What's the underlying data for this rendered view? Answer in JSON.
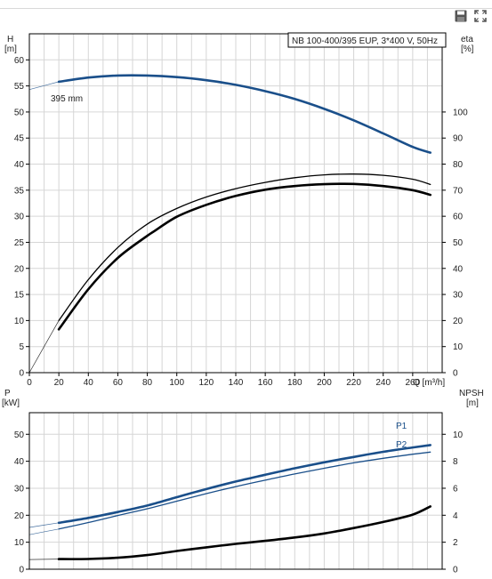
{
  "toolbar": {
    "save_icon": "floppy-disk-icon",
    "fullscreen_icon": "expand-arrows-icon"
  },
  "chart_data": [
    {
      "type": "line",
      "title": "NB 100-400/395 EUP, 3*400 V, 50Hz",
      "xlabel": "Q [m³/h]",
      "xlim": [
        0,
        280
      ],
      "x_ticks": [
        0,
        20,
        40,
        60,
        80,
        100,
        120,
        140,
        160,
        180,
        200,
        220,
        240,
        260
      ],
      "left_axis": {
        "label": "H",
        "unit": "[m]",
        "ylim": [
          0,
          65
        ],
        "ticks": [
          0,
          5,
          10,
          15,
          20,
          25,
          30,
          35,
          40,
          45,
          50,
          55,
          60
        ]
      },
      "right_axis": {
        "label": "eta",
        "unit": "[%]",
        "ylim": [
          0,
          130
        ],
        "ticks": [
          0,
          10,
          20,
          30,
          40,
          50,
          60,
          70,
          80,
          90,
          100
        ]
      },
      "grid": true,
      "series": [
        {
          "name": "395 mm",
          "axis": "left",
          "color": "#1a4f8a",
          "x": [
            0,
            20,
            40,
            60,
            80,
            100,
            120,
            140,
            160,
            180,
            200,
            220,
            240,
            260,
            272
          ],
          "y": [
            54.3,
            55.8,
            56.6,
            57.0,
            57.0,
            56.7,
            56.1,
            55.2,
            54.0,
            52.5,
            50.6,
            48.4,
            45.9,
            43.3,
            42.2
          ]
        },
        {
          "axis": "right",
          "color": "#000000",
          "style": "thin",
          "x": [
            0,
            20,
            40,
            60,
            80,
            100,
            120,
            140,
            160,
            180,
            200,
            220,
            240,
            260,
            272
          ],
          "y": [
            0,
            20.0,
            35.7,
            48.0,
            57.0,
            63.0,
            67.4,
            70.6,
            73.0,
            74.8,
            75.9,
            76.2,
            75.7,
            74.2,
            72.2
          ]
        },
        {
          "axis": "right",
          "color": "#000000",
          "style": "thick",
          "x": [
            20,
            40,
            60,
            80,
            84,
            100,
            120,
            140,
            160,
            180,
            200,
            220,
            240,
            260,
            272
          ],
          "y": [
            16.6,
            32.0,
            44.0,
            52.5,
            54.0,
            59.8,
            64.4,
            67.8,
            70.2,
            71.6,
            72.3,
            72.4,
            71.6,
            70.0,
            68.2
          ]
        }
      ]
    },
    {
      "type": "line",
      "xlim": [
        0,
        280
      ],
      "left_axis": {
        "label": "P",
        "unit": "[kW]",
        "ylim": [
          0,
          58
        ],
        "ticks": [
          0,
          10,
          20,
          30,
          40,
          50
        ]
      },
      "right_axis": {
        "label": "NPSH",
        "unit": "[m]",
        "ylim": [
          0,
          11.6
        ],
        "ticks": [
          0,
          2,
          4,
          6,
          8,
          10
        ]
      },
      "grid": true,
      "series": [
        {
          "name": "P1",
          "axis": "left",
          "color": "#1a4f8a",
          "style": "thick",
          "x": [
            0,
            20,
            40,
            60,
            80,
            100,
            120,
            140,
            160,
            180,
            200,
            220,
            240,
            260,
            272
          ],
          "y": [
            15.5,
            17.2,
            19.0,
            21.2,
            23.6,
            26.7,
            29.7,
            32.5,
            35.0,
            37.4,
            39.6,
            41.6,
            43.5,
            45.1,
            46.0
          ]
        },
        {
          "name": "P2",
          "axis": "left",
          "color": "#1a4f8a",
          "style": "thin",
          "x": [
            0,
            20,
            40,
            60,
            80,
            100,
            120,
            140,
            160,
            180,
            200,
            220,
            240,
            260,
            272
          ],
          "y": [
            12.8,
            14.9,
            17.3,
            19.9,
            22.4,
            25.2,
            28.0,
            30.6,
            33.0,
            35.3,
            37.4,
            39.4,
            41.1,
            42.6,
            43.4
          ]
        },
        {
          "axis": "right",
          "color": "#000000",
          "style": "thick",
          "x": [
            0,
            20,
            40,
            60,
            80,
            100,
            120,
            140,
            160,
            180,
            200,
            220,
            240,
            260,
            272
          ],
          "y": [
            0.72,
            0.75,
            0.76,
            0.85,
            1.05,
            1.35,
            1.62,
            1.88,
            2.1,
            2.35,
            2.65,
            3.05,
            3.5,
            4.05,
            4.65
          ]
        }
      ]
    }
  ]
}
